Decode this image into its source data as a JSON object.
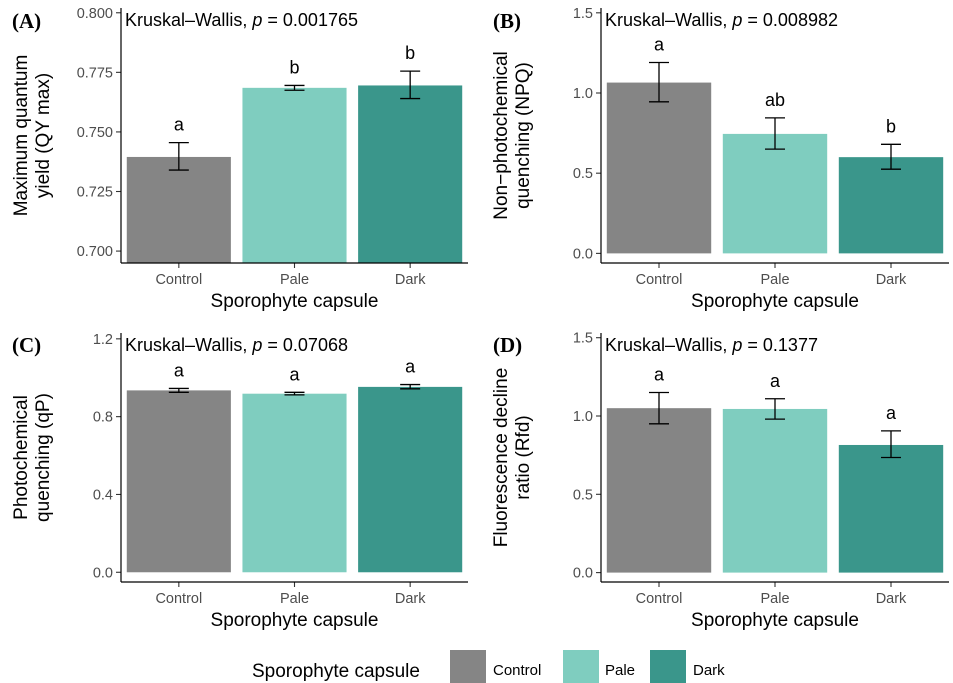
{
  "figure": {
    "legend": {
      "title": "Sporophyte capsule",
      "entries": [
        {
          "label": "Control",
          "color": "#858585"
        },
        {
          "label": "Pale",
          "color": "#7fcdbf"
        },
        {
          "label": "Dark",
          "color": "#3a968b"
        }
      ]
    }
  },
  "chart_data": [
    {
      "type": "bar",
      "panel_label": "(A)",
      "stat_text": "Kruskal–Wallis, ",
      "stat_p": "p = 0.001765",
      "categories": [
        "Control",
        "Pale",
        "Dark"
      ],
      "values": [
        0.7395,
        0.7685,
        0.7695
      ],
      "error_low": [
        0.734,
        0.7675,
        0.764
      ],
      "error_high": [
        0.7455,
        0.7695,
        0.7755
      ],
      "letters": [
        "a",
        "b",
        "b"
      ],
      "ylabel_lines": [
        "Maximum quantum",
        "yield (QY max)"
      ],
      "xlabel": "Sporophyte capsule",
      "ylim": [
        0.695,
        0.802
      ],
      "yticks": [
        0.7,
        0.725,
        0.75,
        0.775,
        0.8
      ],
      "ytick_labels": [
        "0.700",
        "0.725",
        "0.750",
        "0.775",
        "0.800"
      ],
      "colors": [
        "#858585",
        "#7fcdbf",
        "#3a968b"
      ]
    },
    {
      "type": "bar",
      "panel_label": "(B)",
      "stat_text": "Kruskal–Wallis, ",
      "stat_p": "p = 0.008982",
      "categories": [
        "Control",
        "Pale",
        "Dark"
      ],
      "values": [
        1.065,
        0.745,
        0.6
      ],
      "error_low": [
        0.945,
        0.65,
        0.525
      ],
      "error_high": [
        1.19,
        0.845,
        0.68
      ],
      "letters": [
        "a",
        "ab",
        "b"
      ],
      "ylabel_lines": [
        "Non−photochemical",
        "quenching (NPQ)"
      ],
      "xlabel": "Sporophyte capsule",
      "ylim": [
        -0.06,
        1.53
      ],
      "yticks": [
        0.0,
        0.5,
        1.0,
        1.5
      ],
      "ytick_labels": [
        "0.0",
        "0.5",
        "1.0",
        "1.5"
      ],
      "colors": [
        "#858585",
        "#7fcdbf",
        "#3a968b"
      ]
    },
    {
      "type": "bar",
      "panel_label": "(C)",
      "stat_text": "Kruskal–Wallis, ",
      "stat_p": "p = 0.07068",
      "categories": [
        "Control",
        "Pale",
        "Dark"
      ],
      "values": [
        0.935,
        0.918,
        0.953
      ],
      "error_low": [
        0.925,
        0.912,
        0.943
      ],
      "error_high": [
        0.945,
        0.925,
        0.965
      ],
      "letters": [
        "a",
        "a",
        "a"
      ],
      "ylabel_lines": [
        "Photochemical",
        "quenching (qP)"
      ],
      "xlabel": "Sporophyte capsule",
      "ylim": [
        -0.05,
        1.23
      ],
      "yticks": [
        0.0,
        0.4,
        0.8,
        1.2
      ],
      "ytick_labels": [
        "0.0",
        "0.4",
        "0.8",
        "1.2"
      ],
      "colors": [
        "#858585",
        "#7fcdbf",
        "#3a968b"
      ]
    },
    {
      "type": "bar",
      "panel_label": "(D)",
      "stat_text": "Kruskal–Wallis, ",
      "stat_p": "p = 0.1377",
      "categories": [
        "Control",
        "Pale",
        "Dark"
      ],
      "values": [
        1.05,
        1.045,
        0.815
      ],
      "error_low": [
        0.95,
        0.98,
        0.735
      ],
      "error_high": [
        1.15,
        1.11,
        0.905
      ],
      "letters": [
        "a",
        "a",
        "a"
      ],
      "ylabel_lines": [
        "Fluorescence decline",
        "ratio (Rfd)"
      ],
      "xlabel": "Sporophyte capsule",
      "ylim": [
        -0.06,
        1.53
      ],
      "yticks": [
        0.0,
        0.5,
        1.0,
        1.5
      ],
      "ytick_labels": [
        "0.0",
        "0.5",
        "1.0",
        "1.5"
      ],
      "colors": [
        "#858585",
        "#7fcdbf",
        "#3a968b"
      ]
    }
  ]
}
